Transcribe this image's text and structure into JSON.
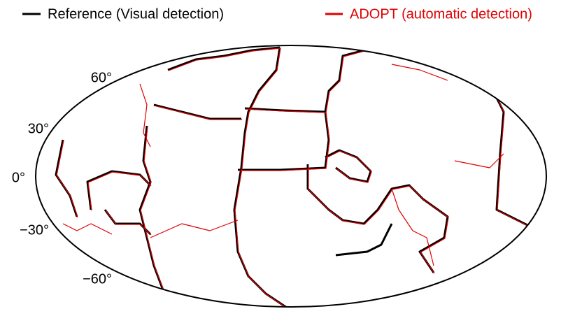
{
  "legend": [
    {
      "name": "Reference (Visual detection)",
      "color": "#000000"
    },
    {
      "name": "ADOPT (automatic detection)",
      "color": "#e00000"
    }
  ],
  "latitude_labels": [
    "60°",
    "30°",
    "0°",
    "−30°",
    "−60°"
  ]
}
